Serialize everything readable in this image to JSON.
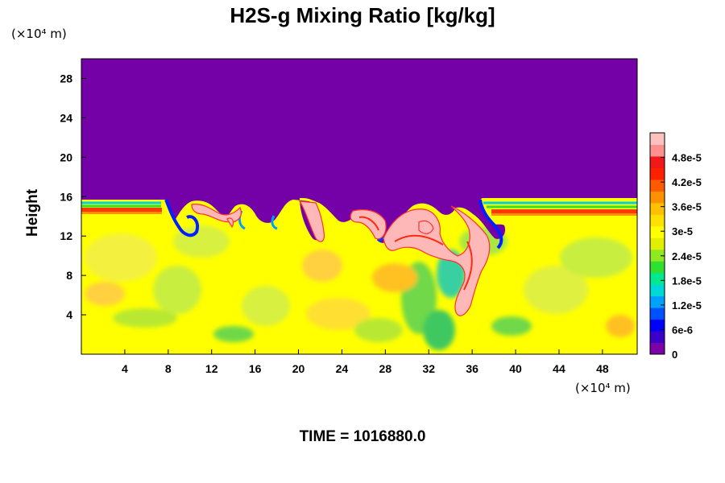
{
  "chart_data": {
    "type": "heatmap",
    "title": "H2S-g Mixing Ratio [kg/kg]",
    "ylabel": "Height",
    "x_unit": "(×10⁴ m)",
    "y_unit": "(×10⁴ m)",
    "x_ticks": [
      4,
      8,
      12,
      16,
      20,
      24,
      28,
      32,
      36,
      40,
      44,
      48
    ],
    "y_ticks": [
      4,
      8,
      12,
      16,
      20,
      24,
      28
    ],
    "xlim": [
      0,
      51.2
    ],
    "ylim": [
      0,
      30
    ],
    "colorbar": {
      "ticks": [
        "0",
        "6e-6",
        "1.2e-5",
        "1.8e-5",
        "2.4e-5",
        "3e-5",
        "3.6e-5",
        "4.2e-5",
        "4.8e-5"
      ],
      "tick_values": [
        0,
        6e-06,
        1.2e-05,
        1.8e-05,
        2.4e-05,
        3e-05,
        3.6e-05,
        4.2e-05,
        4.8e-05
      ],
      "range": [
        0,
        5.4e-05
      ],
      "colors": [
        "#7b00a8",
        "#3a00c8",
        "#0000ff",
        "#0050ff",
        "#00a0ff",
        "#00d8d8",
        "#00e890",
        "#30e030",
        "#90e820",
        "#e0f000",
        "#ffff00",
        "#ffe000",
        "#ffc000",
        "#ff9000",
        "#ff5a00",
        "#ff2000",
        "#f01818",
        "#ff9090",
        "#ffc0c0"
      ]
    },
    "field_summary": {
      "upper_layer_value": 0,
      "upper_layer_color": "#7400a8",
      "layer_boundary_height": 15.5,
      "lower_layer_typical_value": 3.6e-05,
      "lower_layer_color": "#ffff00",
      "plume_value": 4.8e-05,
      "plume_color": "#ffb8b8"
    }
  },
  "time_label": "TIME = 1016880.0"
}
